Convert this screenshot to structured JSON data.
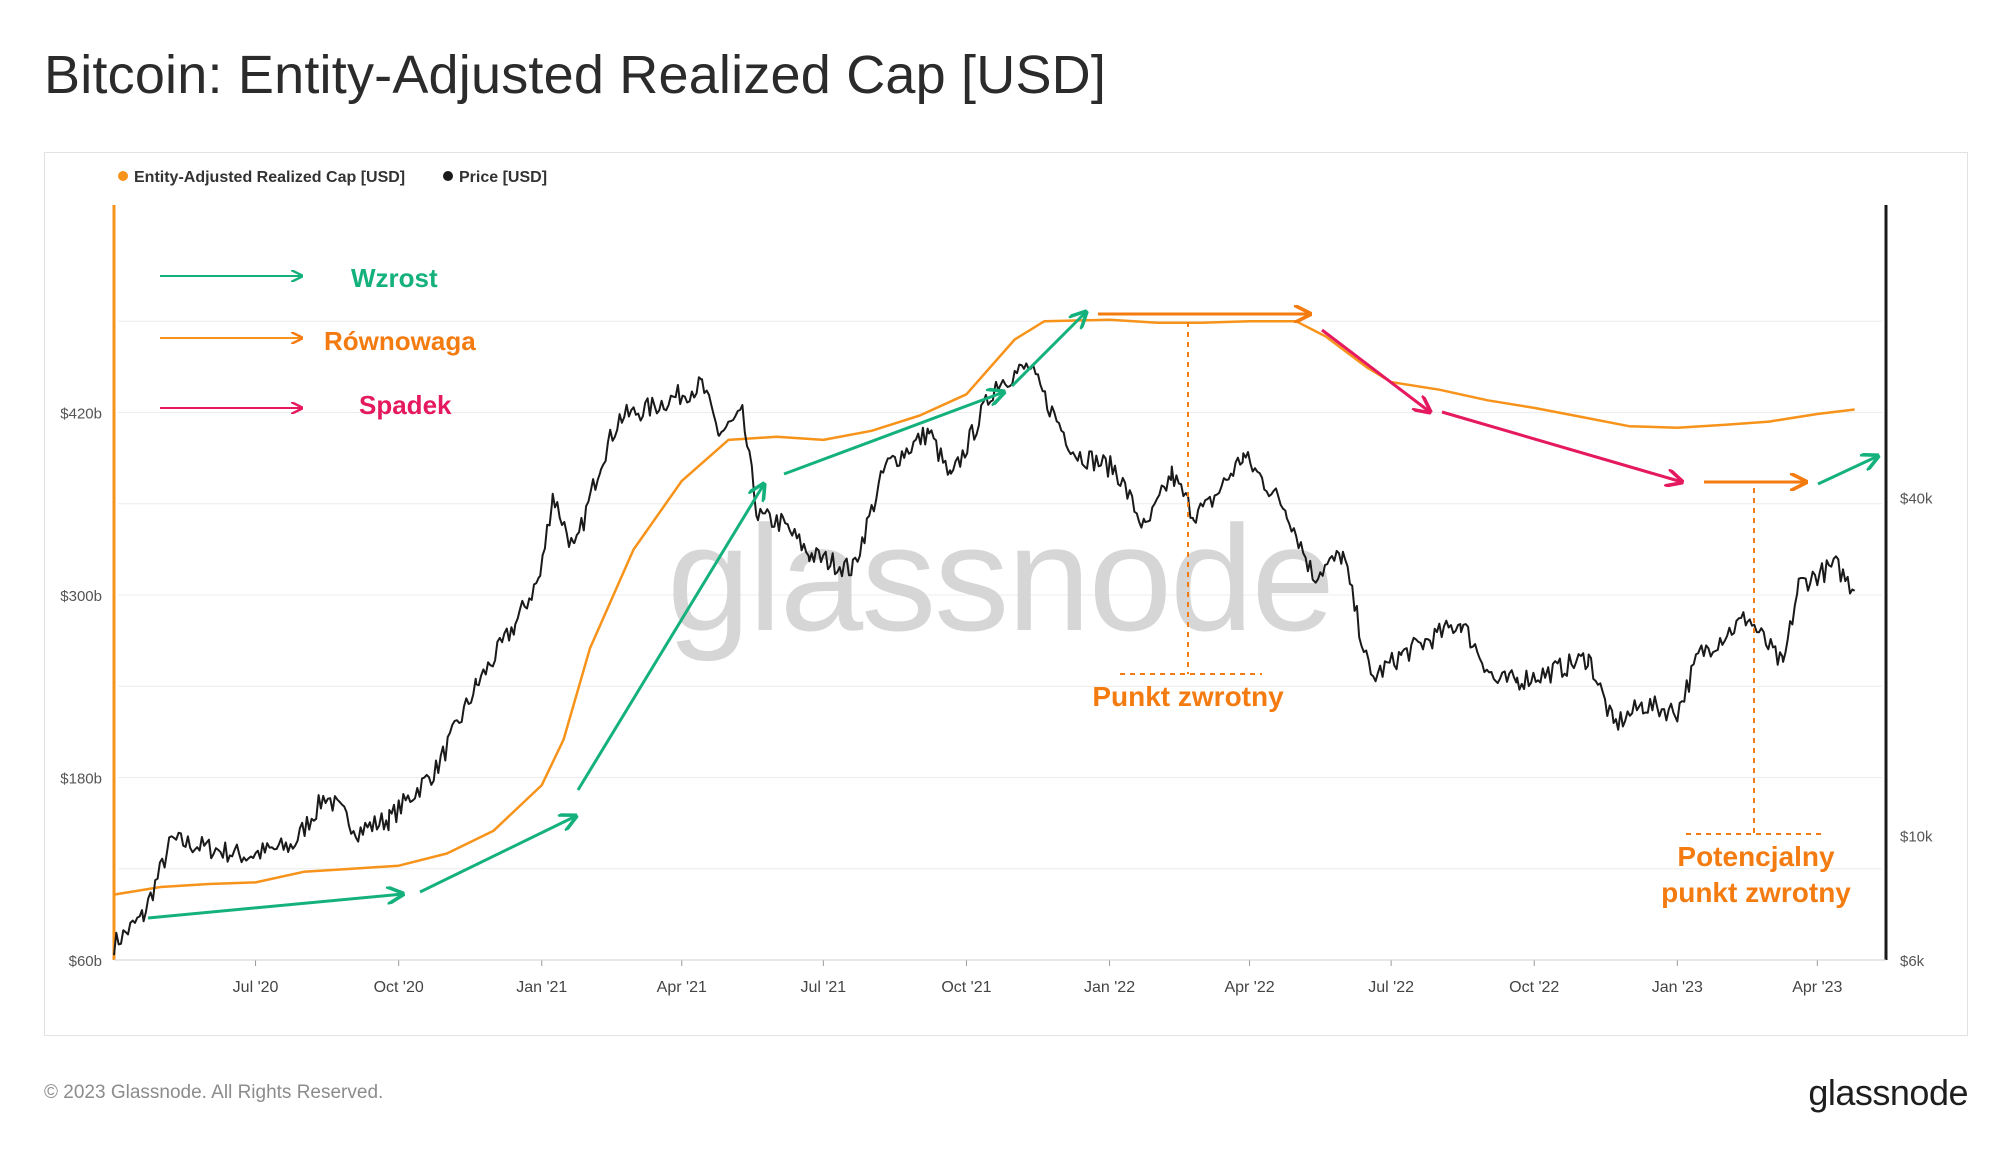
{
  "header": {
    "title": "Bitcoin: Entity-Adjusted Realized Cap [USD]"
  },
  "footer": {
    "copyright": "© 2023 Glassnode. All Rights Reserved.",
    "logo_text": "glassnode"
  },
  "watermark": "glassnode",
  "colors": {
    "realized_cap": "#f7931a",
    "price": "#1a1a1a",
    "rise": "#14b17c",
    "flat": "#f7931a",
    "fall": "#e5195f",
    "annotation": "#f47b10",
    "grid": "#ececec"
  },
  "annotations": {
    "legend_rise": "Wzrost",
    "legend_flat": "Równowaga",
    "legend_fall": "Spadek",
    "turning_point": "Punkt zwrotny",
    "potential_turning_point_line1": "Potencjalny",
    "potential_turning_point_line2": "punkt zwrotny"
  },
  "chart_data": {
    "type": "line",
    "legend": [
      "Entity-Adjusted Realized Cap [USD]",
      "Price [USD]"
    ],
    "legend_placement": "top-left",
    "grid": true,
    "x_tick_labels": [
      "Jul '20",
      "Oct '20",
      "Jan '21",
      "Apr '21",
      "Jul '21",
      "Oct '21",
      "Jan '22",
      "Apr '22",
      "Jul '22",
      "Oct '22",
      "Jan '23",
      "Apr '23"
    ],
    "x_range": [
      "2020-04-01",
      "2023-05-01"
    ],
    "y_left": {
      "tick_labels": [
        "$60b",
        "$180b",
        "$300b",
        "$420b"
      ],
      "range": [
        60,
        540
      ],
      "unit": "billion USD"
    },
    "y_right": {
      "tick_labels": [
        "$6k",
        "$10k",
        "$40k"
      ],
      "range": [
        6000,
        120000
      ],
      "scale": "log"
    },
    "series": [
      {
        "name": "Entity-Adjusted Realized Cap [USD]",
        "axis": "left",
        "x": [
          "2020-04-01",
          "2020-05-01",
          "2020-06-01",
          "2020-07-01",
          "2020-08-01",
          "2020-09-01",
          "2020-10-01",
          "2020-11-01",
          "2020-12-01",
          "2021-01-01",
          "2021-01-15",
          "2021-02-01",
          "2021-03-01",
          "2021-04-01",
          "2021-05-01",
          "2021-06-01",
          "2021-07-01",
          "2021-08-01",
          "2021-09-01",
          "2021-10-01",
          "2021-11-01",
          "2021-11-20",
          "2022-01-01",
          "2022-02-01",
          "2022-03-01",
          "2022-04-01",
          "2022-05-01",
          "2022-05-20",
          "2022-06-15",
          "2022-07-01",
          "2022-08-01",
          "2022-09-01",
          "2022-10-01",
          "2022-11-01",
          "2022-12-01",
          "2023-01-01",
          "2023-02-01",
          "2023-03-01",
          "2023-04-01",
          "2023-04-25"
        ],
        "values": [
          103,
          108,
          110,
          111,
          118,
          120,
          122,
          130,
          145,
          175,
          205,
          265,
          330,
          375,
          402,
          404,
          402,
          408,
          418,
          432,
          468,
          480,
          481,
          479,
          479,
          480,
          480,
          470,
          450,
          440,
          435,
          428,
          423,
          417,
          411,
          410,
          412,
          414,
          419,
          422
        ]
      },
      {
        "name": "Price [USD]",
        "axis": "right",
        "x": [
          "2020-04-01",
          "2020-04-20",
          "2020-05-08",
          "2020-06-01",
          "2020-06-25",
          "2020-07-25",
          "2020-08-15",
          "2020-09-05",
          "2020-09-25",
          "2020-10-25",
          "2020-11-20",
          "2020-12-15",
          "2020-12-31",
          "2021-01-08",
          "2021-01-22",
          "2021-02-08",
          "2021-02-20",
          "2021-03-13",
          "2021-04-14",
          "2021-04-25",
          "2021-05-10",
          "2021-05-20",
          "2021-06-05",
          "2021-06-22",
          "2021-07-20",
          "2021-08-10",
          "2021-08-25",
          "2021-09-07",
          "2021-09-21",
          "2021-10-20",
          "2021-11-10",
          "2021-11-25",
          "2021-12-10",
          "2022-01-05",
          "2022-01-24",
          "2022-02-10",
          "2022-02-24",
          "2022-03-05",
          "2022-03-28",
          "2022-04-25",
          "2022-05-12",
          "2022-05-31",
          "2022-06-18",
          "2022-07-08",
          "2022-08-15",
          "2022-09-06",
          "2022-09-20",
          "2022-10-10",
          "2022-10-31",
          "2022-11-05",
          "2022-11-21",
          "2022-12-10",
          "2023-01-01",
          "2023-01-15",
          "2023-02-15",
          "2023-03-10",
          "2023-03-20",
          "2023-04-13",
          "2023-04-25"
        ],
        "values": [
          6400,
          7200,
          9800,
          9500,
          9200,
          9600,
          11800,
          10200,
          10700,
          13100,
          18500,
          23800,
          29000,
          40500,
          32000,
          46500,
          55500,
          58000,
          63500,
          52000,
          56000,
          37000,
          36000,
          31700,
          29800,
          45500,
          49000,
          52500,
          43000,
          64000,
          68500,
          57000,
          48000,
          45000,
          35000,
          44000,
          37500,
          38500,
          47500,
          38000,
          29000,
          31700,
          19000,
          21000,
          24000,
          18800,
          18900,
          19500,
          20500,
          20800,
          15700,
          17100,
          16600,
          21000,
          24500,
          20000,
          28000,
          30300,
          27300
        ]
      }
    ]
  }
}
